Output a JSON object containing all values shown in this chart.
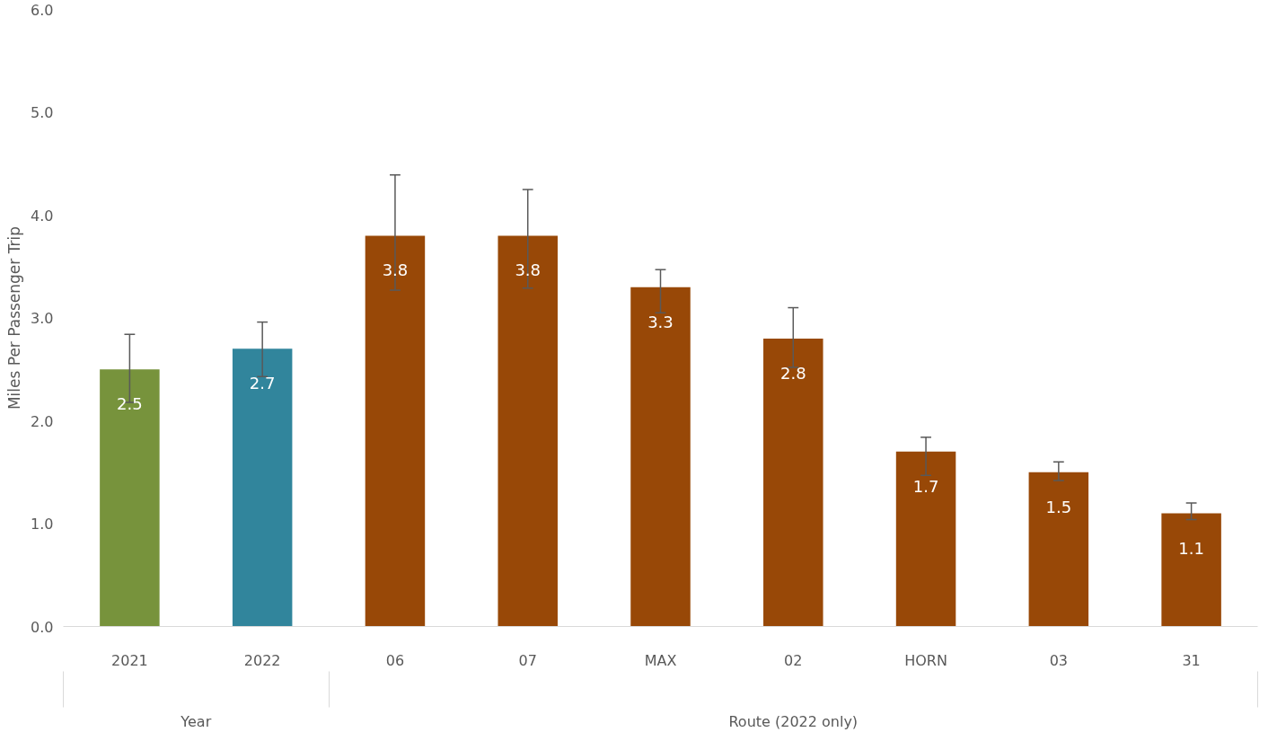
{
  "chart_data": {
    "type": "bar",
    "ylabel": "Miles Per Passenger Trip",
    "categories": [
      "2021",
      "2022",
      "06",
      "07",
      "MAX",
      "02",
      "HORN",
      "03",
      "31"
    ],
    "values": [
      2.5,
      2.7,
      3.8,
      3.8,
      3.3,
      2.8,
      1.7,
      1.5,
      1.1
    ],
    "colors": [
      "#77933c",
      "#31859c",
      "#984807",
      "#984807",
      "#984807",
      "#984807",
      "#984807",
      "#984807",
      "#984807"
    ],
    "errors": [
      [
        2.18,
        2.84
      ],
      [
        2.43,
        2.96
      ],
      [
        3.27,
        4.39
      ],
      [
        3.29,
        4.25
      ],
      [
        3.05,
        3.47
      ],
      [
        2.52,
        3.1
      ],
      [
        1.47,
        1.84
      ],
      [
        1.42,
        1.6
      ],
      [
        1.04,
        1.2
      ]
    ],
    "data_labels": true,
    "annotations": [
      "Year",
      "Route (2022 only)"
    ],
    "ylim": [
      0,
      6
    ],
    "yticks": [
      {
        "value": 0,
        "label": "0.0"
      },
      {
        "value": 1,
        "label": "1.0"
      },
      {
        "value": 2,
        "label": "2.0"
      },
      {
        "value": 3,
        "label": "3.0"
      },
      {
        "value": 4,
        "label": "4.0"
      },
      {
        "value": 5,
        "label": "5.0"
      },
      {
        "value": 6,
        "label": "6.0"
      }
    ],
    "grid": false
  }
}
